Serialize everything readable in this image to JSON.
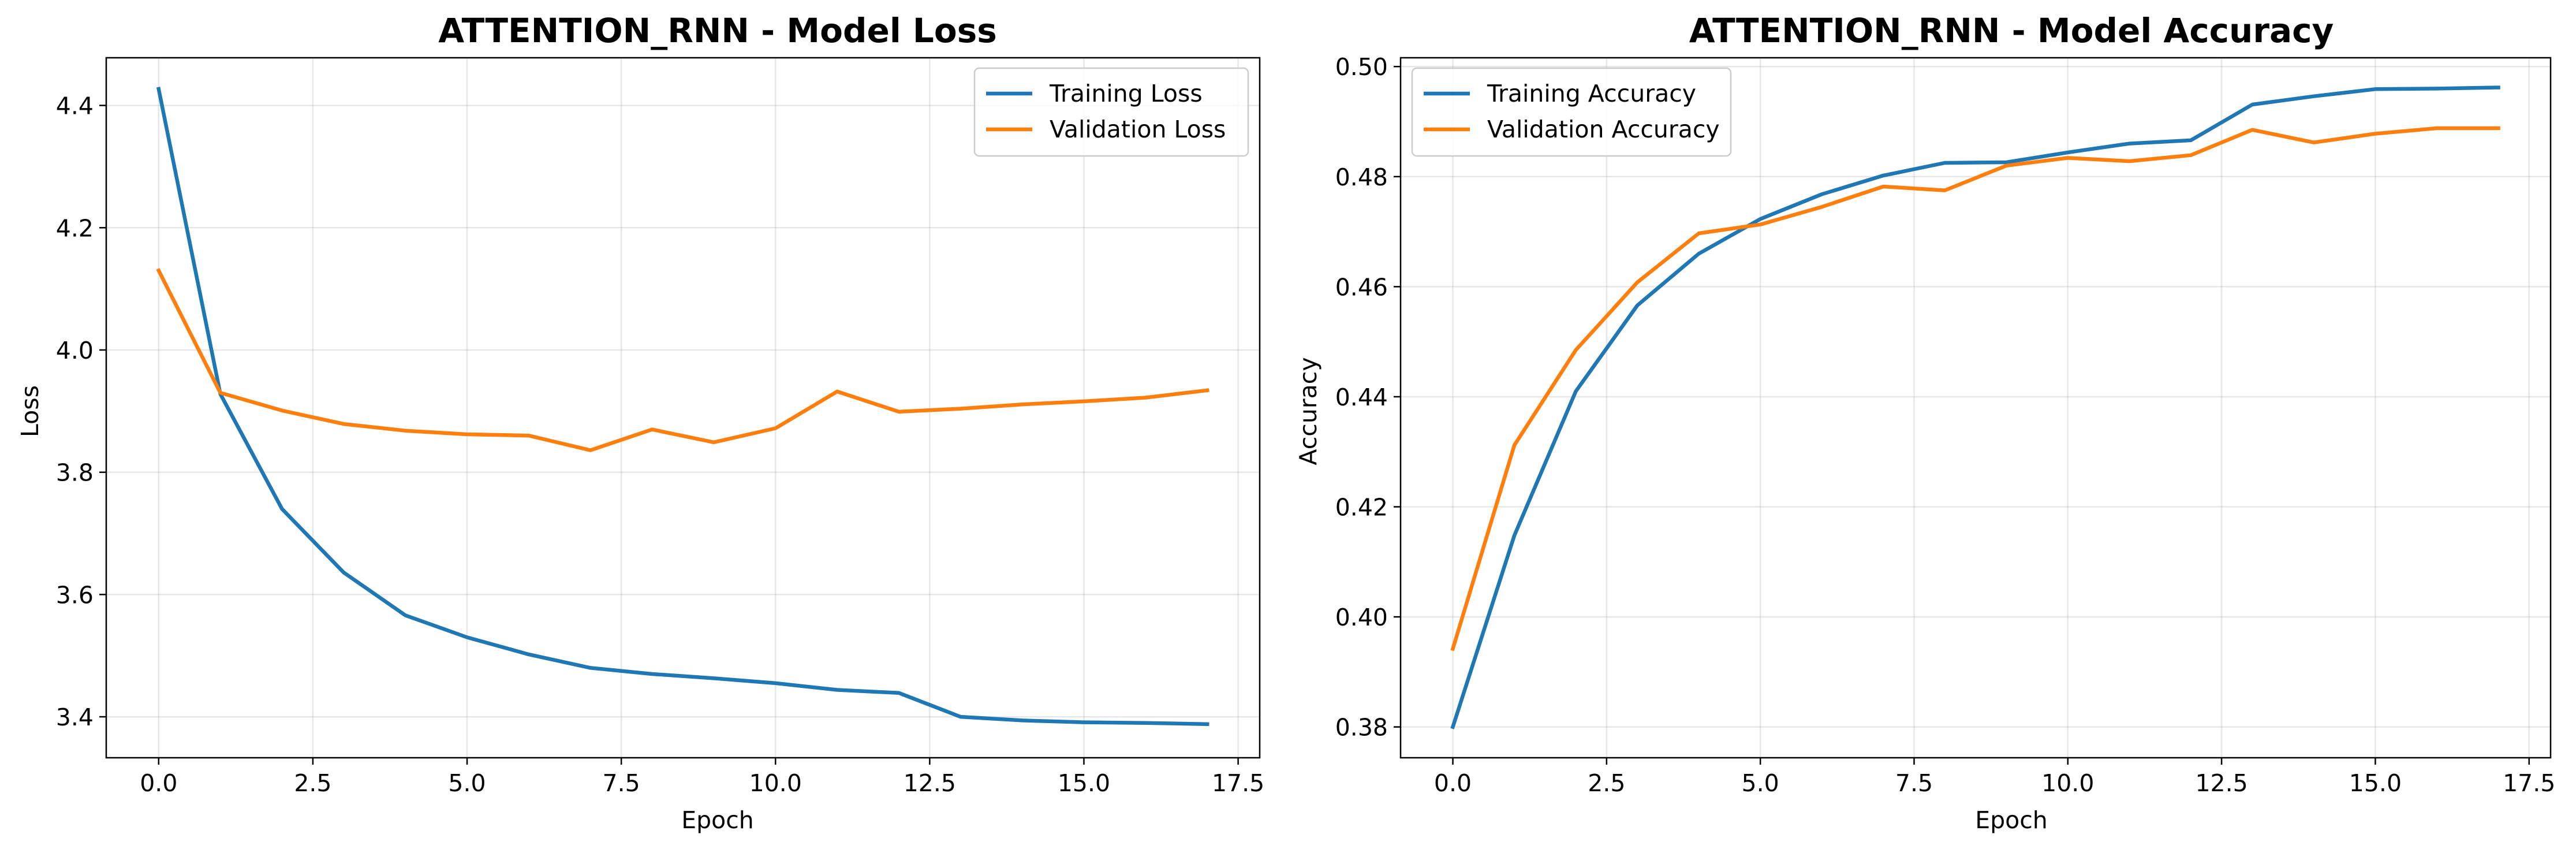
{
  "chart_data": [
    {
      "type": "line",
      "title": "ATTENTION_RNN - Model Loss",
      "xlabel": "Epoch",
      "ylabel": "Loss",
      "xlim": [
        -0.85,
        17.85
      ],
      "ylim": [
        3.333,
        4.478
      ],
      "xticks": [
        0.0,
        2.5,
        5.0,
        7.5,
        10.0,
        12.5,
        15.0,
        17.5
      ],
      "xtick_labels": [
        "0.0",
        "2.5",
        "5.0",
        "7.5",
        "10.0",
        "12.5",
        "15.0",
        "17.5"
      ],
      "yticks": [
        3.4,
        3.6,
        3.8,
        4.0,
        4.2,
        4.4
      ],
      "ytick_labels": [
        "3.4",
        "3.6",
        "3.8",
        "4.0",
        "4.2",
        "4.4"
      ],
      "grid": true,
      "legend_position": "top-right",
      "x": [
        0,
        1,
        2,
        3,
        4,
        5,
        6,
        7,
        8,
        9,
        10,
        11,
        12,
        13,
        14,
        15,
        16,
        17
      ],
      "series": [
        {
          "name": "Training Loss",
          "color": "#1f77b4",
          "values": [
            4.427,
            3.928,
            3.74,
            3.636,
            3.566,
            3.53,
            3.502,
            3.48,
            3.47,
            3.463,
            3.455,
            3.444,
            3.439,
            3.4,
            3.394,
            3.391,
            3.39,
            3.388
          ]
        },
        {
          "name": "Validation Loss",
          "color": "#ff7f0e",
          "values": [
            4.13,
            3.93,
            3.901,
            3.879,
            3.868,
            3.862,
            3.86,
            3.836,
            3.87,
            3.849,
            3.872,
            3.932,
            3.899,
            3.904,
            3.911,
            3.916,
            3.922,
            3.934
          ]
        }
      ]
    },
    {
      "type": "line",
      "title": "ATTENTION_RNN - Model Accuracy",
      "xlabel": "Epoch",
      "ylabel": "Accuracy",
      "xlim": [
        -0.85,
        17.85
      ],
      "ylim": [
        0.3744,
        0.5016
      ],
      "xticks": [
        0.0,
        2.5,
        5.0,
        7.5,
        10.0,
        12.5,
        15.0,
        17.5
      ],
      "xtick_labels": [
        "0.0",
        "2.5",
        "5.0",
        "7.5",
        "10.0",
        "12.5",
        "15.0",
        "17.5"
      ],
      "yticks": [
        0.38,
        0.4,
        0.42,
        0.44,
        0.46,
        0.48,
        0.5
      ],
      "ytick_labels": [
        "0.38",
        "0.40",
        "0.42",
        "0.44",
        "0.46",
        "0.48",
        "0.50"
      ],
      "grid": true,
      "legend_position": "top-left",
      "x": [
        0,
        1,
        2,
        3,
        4,
        5,
        6,
        7,
        8,
        9,
        10,
        11,
        12,
        13,
        14,
        15,
        16,
        17
      ],
      "series": [
        {
          "name": "Training Accuracy",
          "color": "#1f77b4",
          "values": [
            0.38,
            0.4148,
            0.441,
            0.4566,
            0.466,
            0.4723,
            0.4768,
            0.4802,
            0.4825,
            0.4826,
            0.4844,
            0.486,
            0.4866,
            0.4931,
            0.4946,
            0.4959,
            0.496,
            0.4962
          ]
        },
        {
          "name": "Validation Accuracy",
          "color": "#ff7f0e",
          "values": [
            0.3942,
            0.4312,
            0.4485,
            0.4608,
            0.4697,
            0.4713,
            0.4745,
            0.4782,
            0.4775,
            0.482,
            0.4834,
            0.4828,
            0.4839,
            0.4885,
            0.4862,
            0.4878,
            0.4888,
            0.4888
          ]
        }
      ]
    }
  ]
}
